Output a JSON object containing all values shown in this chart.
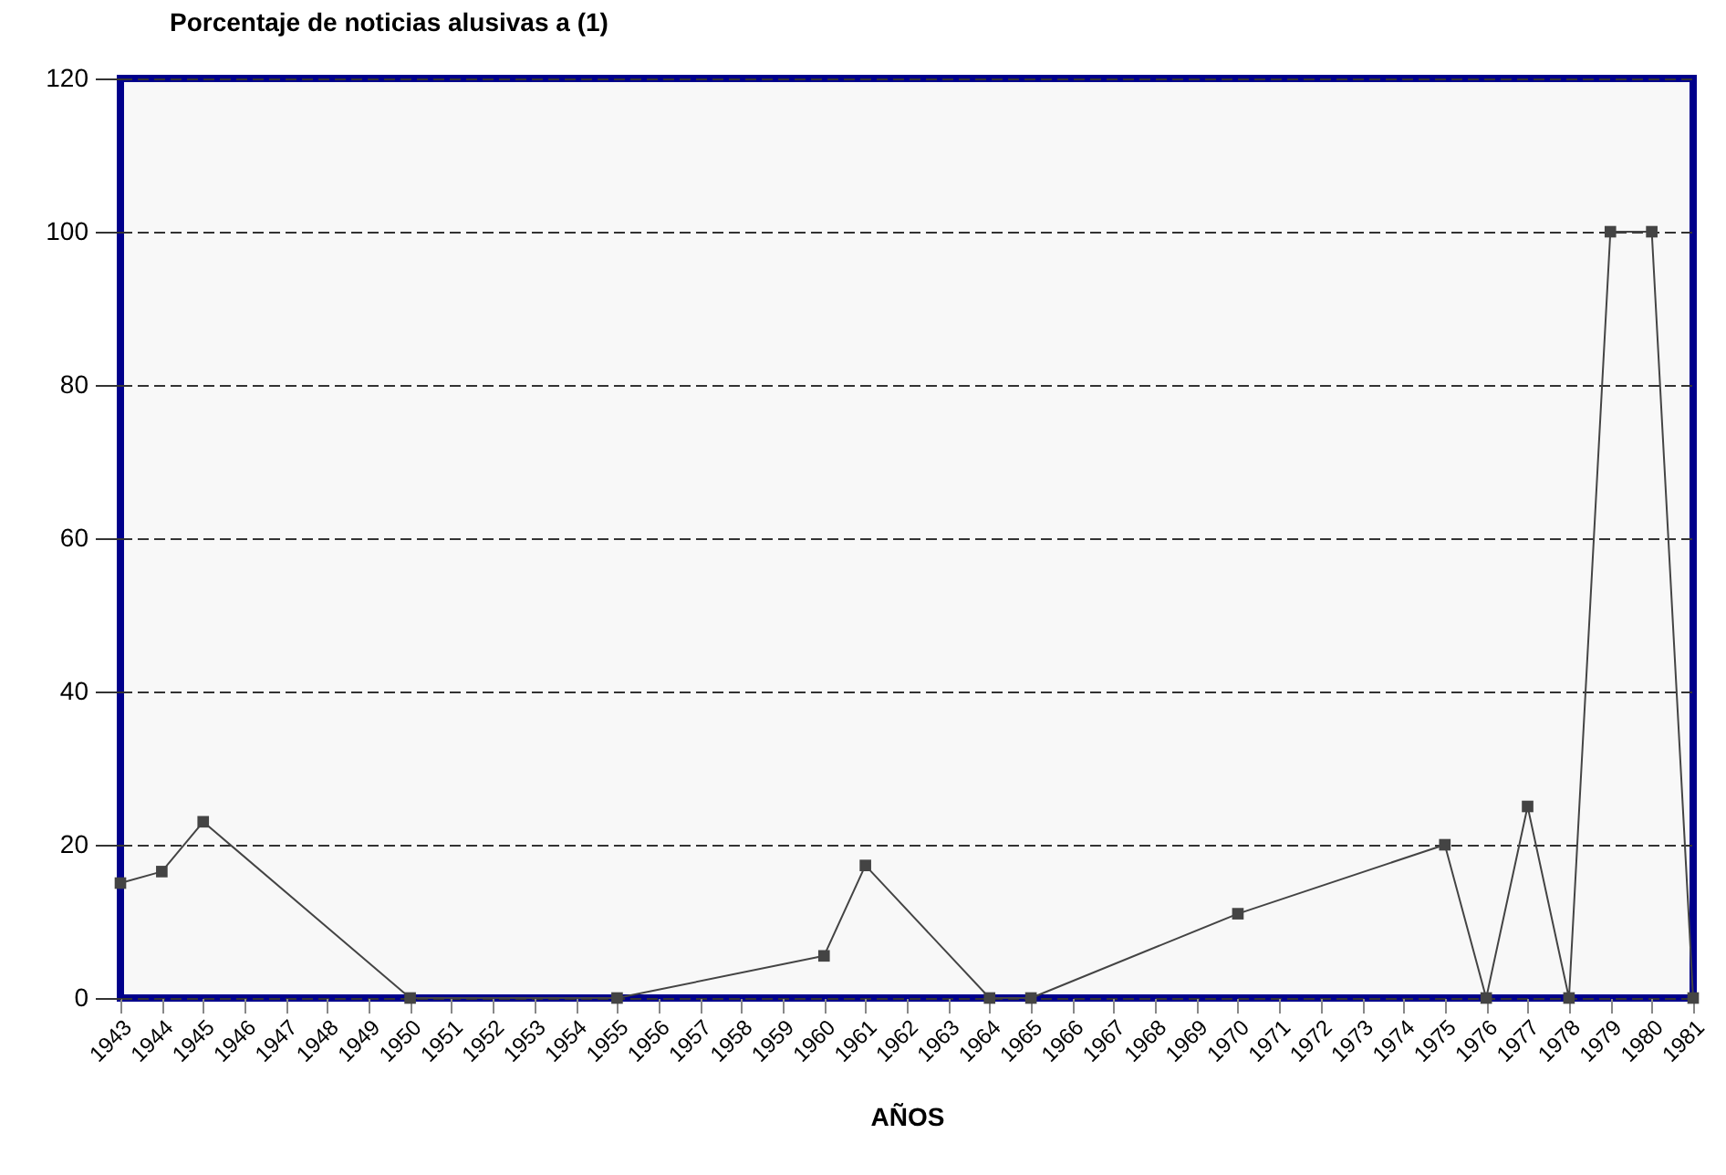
{
  "chart_data": {
    "type": "line",
    "title": "Porcentaje de noticias alusivas a (1)",
    "xlabel": "AÑOS",
    "x": [
      1943,
      1944,
      1945,
      1950,
      1955,
      1960,
      1961,
      1964,
      1965,
      1970,
      1975,
      1976,
      1977,
      1978,
      1979,
      1980,
      1981
    ],
    "series": [
      {
        "color": "#444444",
        "values": [
          15,
          16.5,
          23,
          0,
          0,
          5.5,
          17.3,
          0,
          0,
          11,
          20,
          0,
          25,
          0,
          100,
          100,
          0
        ]
      }
    ],
    "xlim": [
      1943,
      1981
    ],
    "xticks": [
      1943,
      1944,
      1945,
      1946,
      1947,
      1948,
      1949,
      1950,
      1951,
      1952,
      1953,
      1954,
      1955,
      1956,
      1957,
      1958,
      1959,
      1960,
      1961,
      1962,
      1963,
      1964,
      1965,
      1966,
      1967,
      1968,
      1969,
      1970,
      1971,
      1972,
      1973,
      1974,
      1975,
      1976,
      1977,
      1978,
      1979,
      1980,
      1981
    ],
    "ylim": [
      0,
      120
    ],
    "yticks": [
      0,
      20,
      40,
      60,
      80,
      100,
      120
    ],
    "grid": "y",
    "marker": "square",
    "line_style": "solid"
  }
}
